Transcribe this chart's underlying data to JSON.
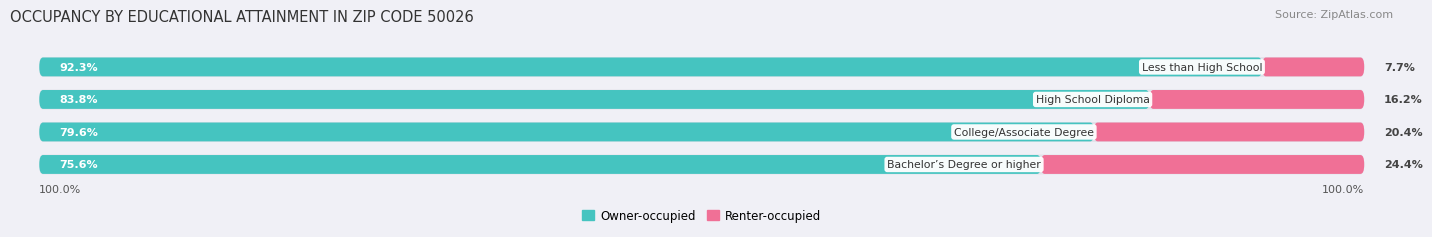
{
  "title": "OCCUPANCY BY EDUCATIONAL ATTAINMENT IN ZIP CODE 50026",
  "source": "Source: ZipAtlas.com",
  "categories": [
    "Less than High School",
    "High School Diploma",
    "College/Associate Degree",
    "Bachelor’s Degree or higher"
  ],
  "owner_values": [
    92.3,
    83.8,
    79.6,
    75.6
  ],
  "renter_values": [
    7.7,
    16.2,
    20.4,
    24.4
  ],
  "owner_color": "#45C4C0",
  "renter_color": "#F07096",
  "bar_bg_color": "#E2E2EA",
  "row_bg_color": "#ECECF2",
  "background_color": "#F0F0F6",
  "title_fontsize": 10.5,
  "source_fontsize": 8,
  "bar_height": 0.58,
  "total_width": 100.0,
  "axis_label_left": "100.0%",
  "axis_label_right": "100.0%",
  "legend_owner": "Owner-occupied",
  "legend_renter": "Renter-occupied"
}
